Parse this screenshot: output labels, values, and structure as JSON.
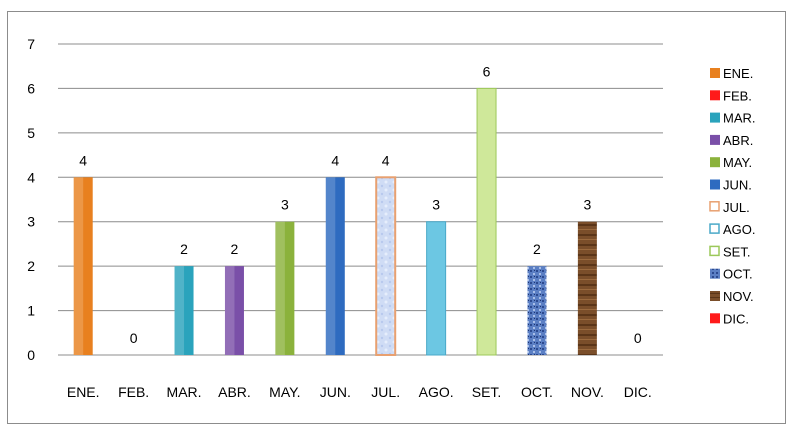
{
  "chart_data": {
    "type": "bar",
    "categories": [
      "ENE.",
      "FEB.",
      "MAR.",
      "ABR.",
      "MAY.",
      "JUN.",
      "JUL.",
      "AGO.",
      "SET.",
      "OCT.",
      "NOV.",
      "DIC."
    ],
    "values": [
      4,
      0,
      2,
      2,
      3,
      4,
      4,
      3,
      6,
      2,
      3,
      0
    ],
    "title": "",
    "xlabel": "",
    "ylabel": "",
    "ylim": [
      0,
      7
    ],
    "yticks": [
      "0",
      "1",
      "2",
      "3",
      "4",
      "5",
      "6",
      "7"
    ],
    "grid": true,
    "legend_placement": "right",
    "data_labels": [
      "4",
      "0",
      "2",
      "2",
      "3",
      "4",
      "4",
      "3",
      "6",
      "2",
      "3",
      "0"
    ],
    "legend": [
      "ENE.",
      "FEB.",
      "MAR.",
      "ABR.",
      "MAY.",
      "JUN.",
      "JUL.",
      "AGO.",
      "SET.",
      "OCT.",
      "NOV.",
      "DIC."
    ],
    "colors": [
      "#e8801f",
      "#ff1a1a",
      "#2aa3bc",
      "#7a4fa8",
      "#8bb23c",
      "#2e6bc0",
      "#e8a070",
      "#6cc7e3",
      "#cfe89a",
      "#4a70b8",
      "#7a4e2a",
      "#ff1a1a"
    ]
  }
}
